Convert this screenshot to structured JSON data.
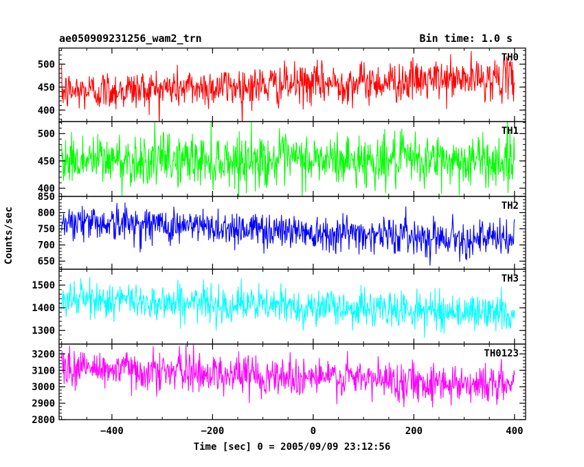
{
  "chart_data": {
    "type": "line",
    "title": "ae050909231256_wam2_trn",
    "subtitle": "Bin time: 1.0 s",
    "xlabel": "Time [sec] 0 = 2005/09/09 23:12:56",
    "ylabel": "Counts/sec",
    "xlim": [
      -505,
      422
    ],
    "x_ticks": [
      -400,
      -200,
      0,
      200,
      400
    ],
    "x_tick_labels": [
      "−400",
      "−200",
      "0",
      "200",
      "400"
    ],
    "bin_time": 1.0,
    "x_start": -500,
    "x_end": 400,
    "panels": [
      {
        "name": "TH0",
        "color": "#ff0000",
        "ylim": [
          375,
          535
        ],
        "yticks": [
          400,
          450,
          500
        ],
        "trend_start": 440,
        "trend_end": 470,
        "noise_sd": 22
      },
      {
        "name": "TH1",
        "color": "#00ff00",
        "ylim": [
          385,
          522
        ],
        "yticks": [
          400,
          450,
          500
        ],
        "trend_start": 452,
        "trend_end": 450,
        "noise_sd": 24
      },
      {
        "name": "TH2",
        "color": "#0000ff",
        "ylim": [
          625,
          850
        ],
        "yticks": [
          650,
          700,
          750,
          800,
          850
        ],
        "trend_start": 775,
        "trend_end": 715,
        "noise_sd": 28
      },
      {
        "name": "TH3",
        "color": "#00ffff",
        "ylim": [
          1240,
          1570
        ],
        "yticks": [
          1300,
          1400,
          1500
        ],
        "trend_start": 1440,
        "trend_end": 1375,
        "noise_sd": 40
      },
      {
        "name": "TH0123",
        "color": "#ff00ff",
        "ylim": [
          2800,
          3260
        ],
        "yticks": [
          2800,
          2900,
          3000,
          3100,
          3200
        ],
        "trend_start": 3120,
        "trend_end": 3010,
        "noise_sd": 60
      }
    ]
  }
}
